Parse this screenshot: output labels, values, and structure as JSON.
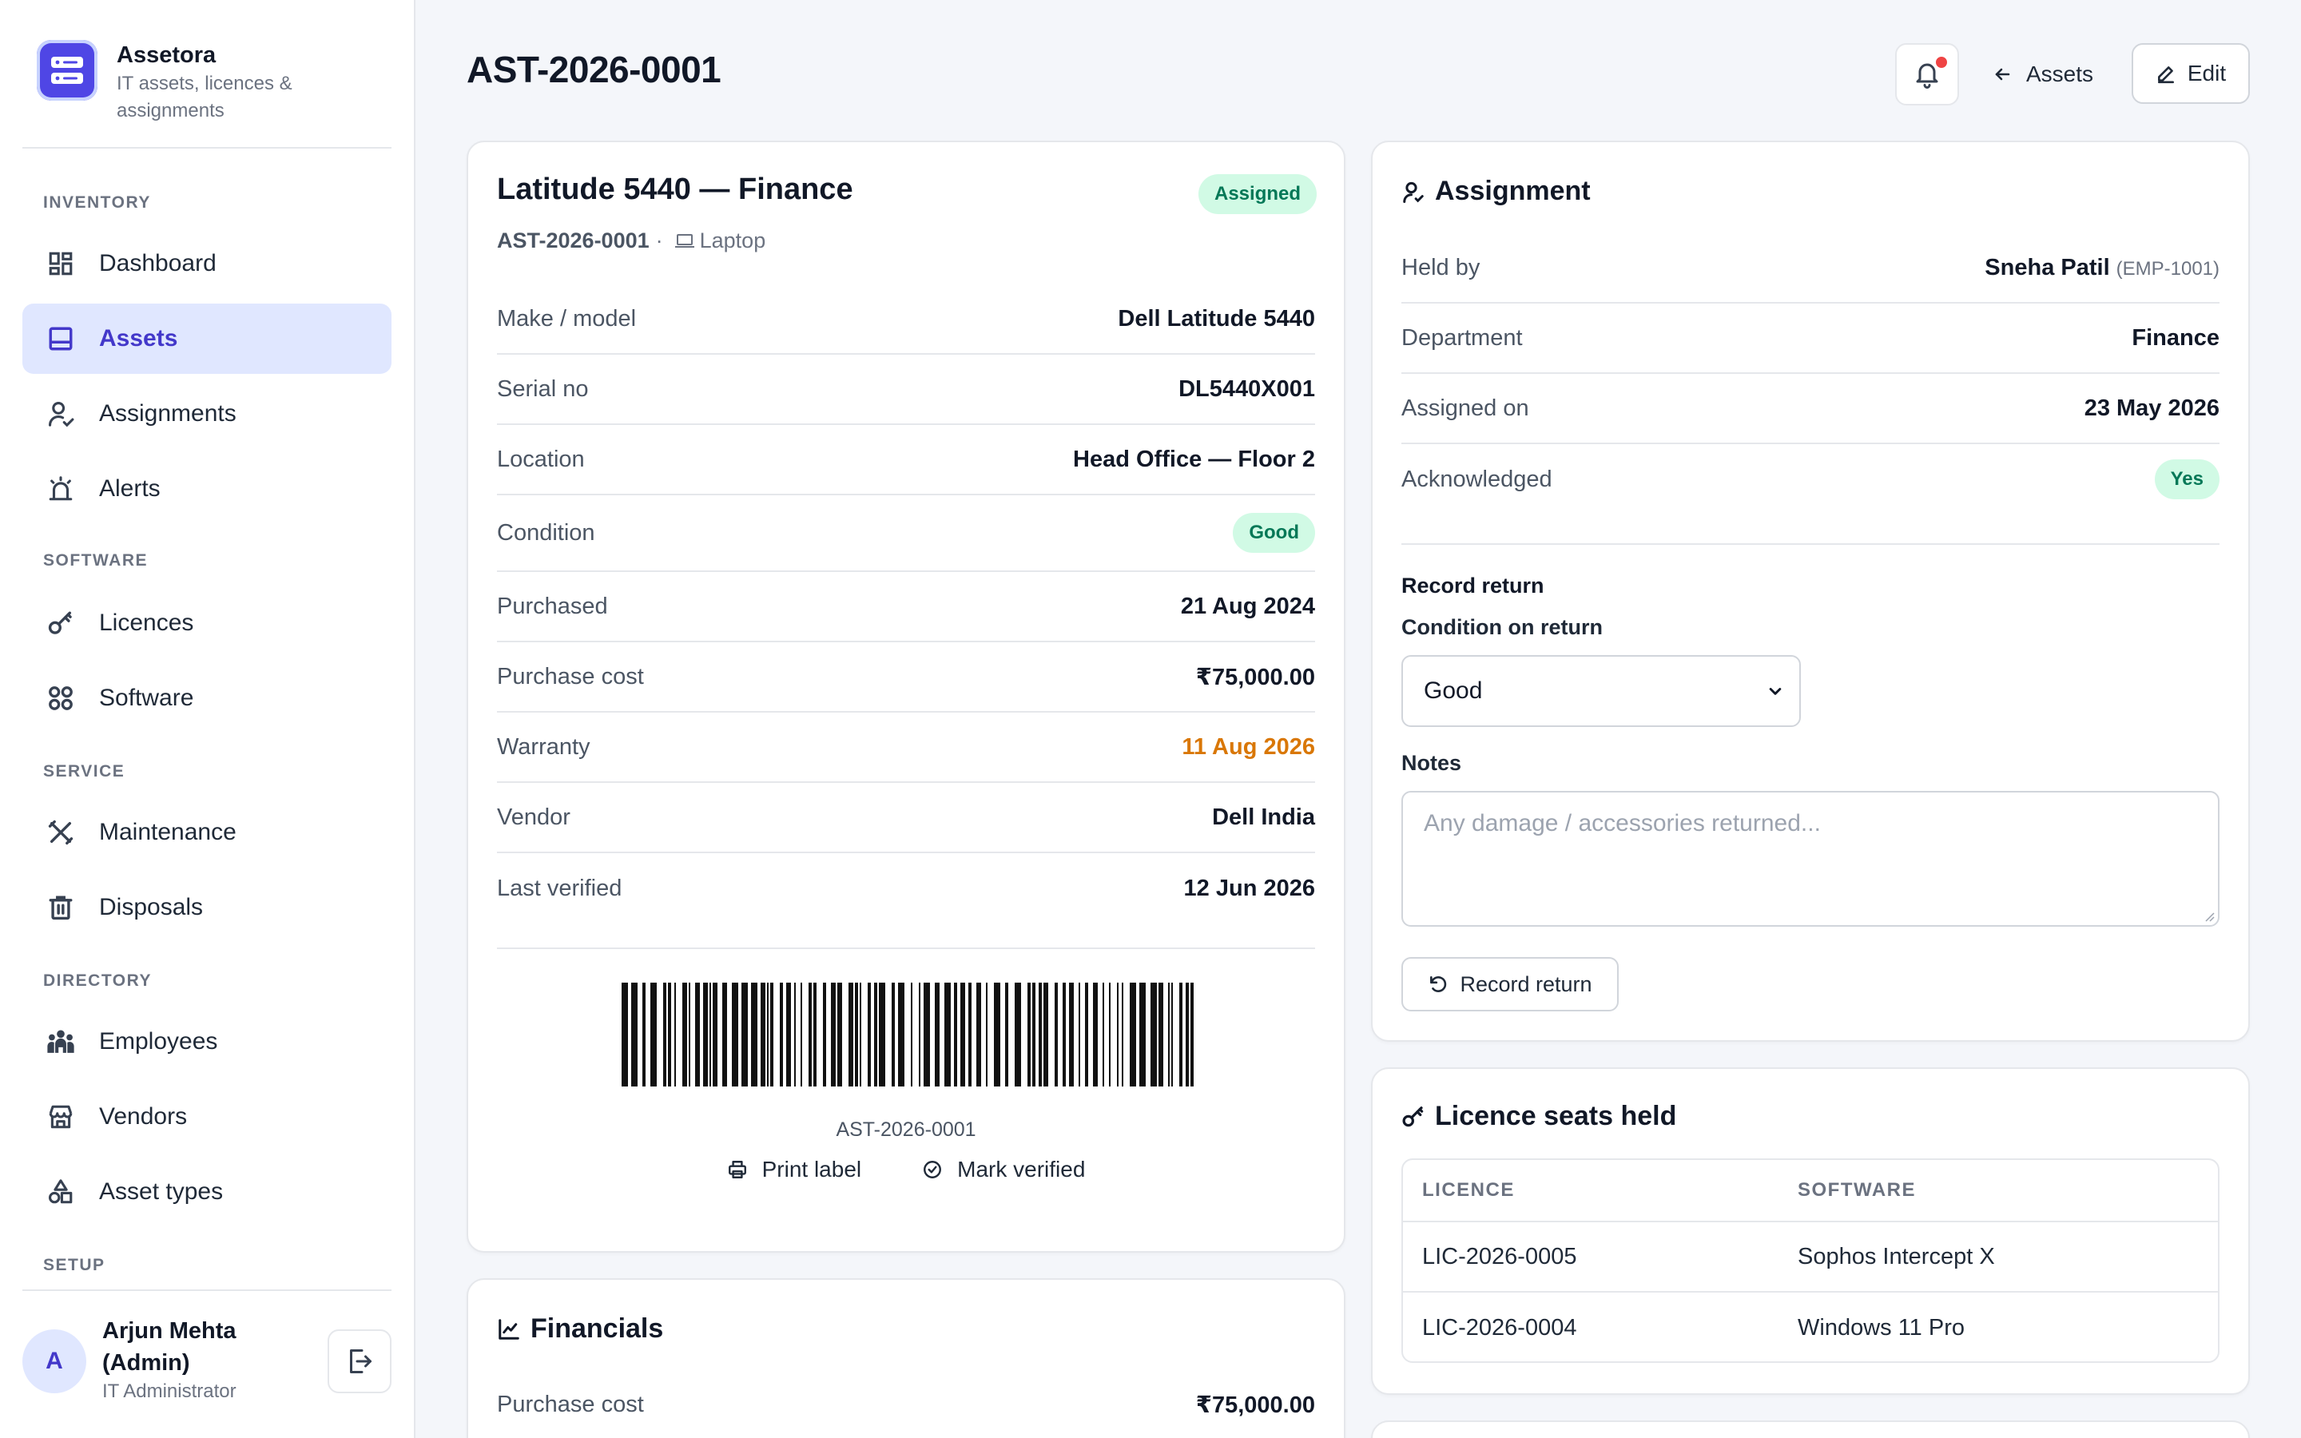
{
  "app": {
    "name": "Assetora",
    "tagline": "IT assets, licences & assignments"
  },
  "nav": {
    "sections": {
      "inventory": "INVENTORY",
      "software": "SOFTWARE",
      "service": "SERVICE",
      "directory": "DIRECTORY",
      "setup": "SETUP"
    },
    "items": {
      "dashboard": "Dashboard",
      "assets": "Assets",
      "assignments": "Assignments",
      "alerts": "Alerts",
      "licences": "Licences",
      "software": "Software",
      "maintenance": "Maintenance",
      "disposals": "Disposals",
      "employees": "Employees",
      "vendors": "Vendors",
      "asset_types": "Asset types"
    },
    "active": "assets"
  },
  "user": {
    "initial": "A",
    "name": "Arjun Mehta (Admin)",
    "role": "IT Administrator"
  },
  "header": {
    "title": "AST-2026-0001",
    "back_label": "Assets",
    "edit_label": "Edit",
    "has_notification": true
  },
  "asset": {
    "title": "Latitude 5440 — Finance",
    "status": "Assigned",
    "code": "AST-2026-0001",
    "type": "Laptop",
    "details": [
      {
        "label": "Make / model",
        "value": "Dell Latitude 5440"
      },
      {
        "label": "Serial no",
        "value": "DL5440X001"
      },
      {
        "label": "Location",
        "value": "Head Office — Floor 2"
      },
      {
        "label": "Condition",
        "value": "Good"
      },
      {
        "label": "Purchased",
        "value": "21 Aug 2024"
      },
      {
        "label": "Purchase cost",
        "value": "₹75,000.00"
      },
      {
        "label": "Warranty",
        "value": "11 Aug 2026"
      },
      {
        "label": "Vendor",
        "value": "Dell India"
      },
      {
        "label": "Last verified",
        "value": "12 Jun 2026"
      }
    ],
    "barcode_text": "AST-2026-0001",
    "print_label": "Print label",
    "mark_verified": "Mark verified"
  },
  "financials": {
    "title": "Financials",
    "rows": [
      {
        "label": "Purchase cost",
        "value": "₹75,000.00"
      }
    ]
  },
  "assignment": {
    "title": "Assignment",
    "held_by_label": "Held by",
    "held_by_name": "Sneha Patil",
    "held_by_id": "(EMP-1001)",
    "department_label": "Department",
    "department": "Finance",
    "assigned_on_label": "Assigned on",
    "assigned_on": "23 May 2026",
    "acknowledged_label": "Acknowledged",
    "acknowledged": "Yes",
    "return_title": "Record return",
    "condition_label": "Condition on return",
    "condition_value": "Good",
    "notes_label": "Notes",
    "notes_placeholder": "Any damage / accessories returned...",
    "return_button": "Record return"
  },
  "licences": {
    "title": "Licence seats held",
    "columns": [
      "LICENCE",
      "SOFTWARE"
    ],
    "rows": [
      [
        "LIC-2026-0005",
        "Sophos Intercept X"
      ],
      [
        "LIC-2026-0004",
        "Windows 11 Pro"
      ]
    ]
  },
  "colors": {
    "accent": "#4f46e5",
    "accent_bg": "#e0e7ff",
    "success_bg": "#d1fae5",
    "success_text": "#047857",
    "warning_text": "#d97706",
    "notification": "#ef4444"
  }
}
